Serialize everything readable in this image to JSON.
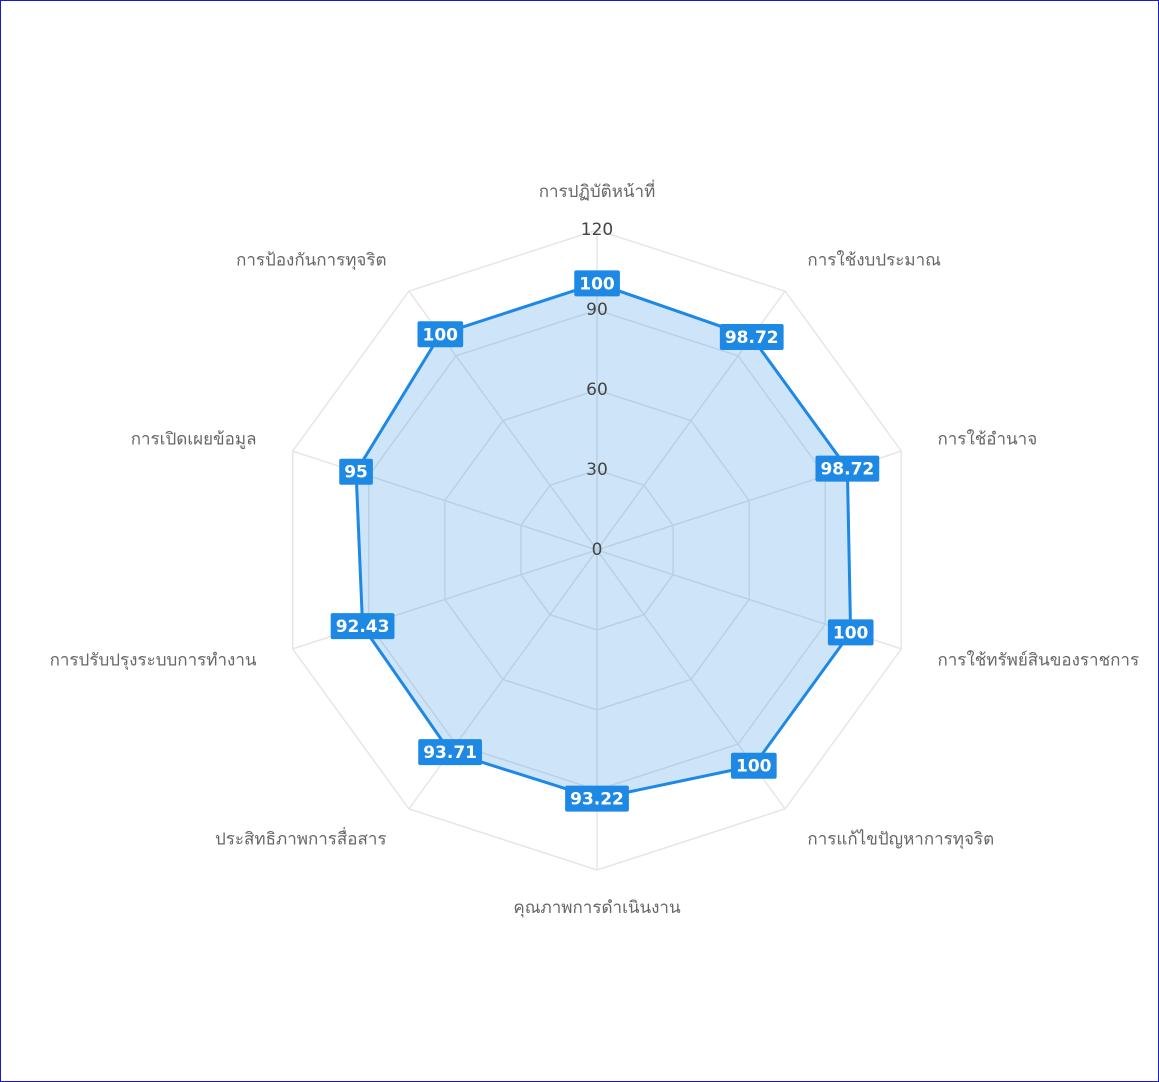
{
  "chart_data": {
    "type": "radar",
    "categories": [
      "การปฏิบัติหน้าที่",
      "การใช้งบประมาณ",
      "การใช้อำนาจ",
      "การใช้ทรัพย์สินของราชการ",
      "การแก้ไขปัญหาการทุจริต",
      "คุณภาพการดำเนินงาน",
      "ประสิทธิภาพการสื่อสาร",
      "การปรับปรุงระบบการทำงาน",
      "การเปิดเผยข้อมูล",
      "การป้องกันการทุจริต"
    ],
    "values": [
      100,
      98.72,
      98.72,
      100,
      100,
      93.22,
      93.71,
      92.43,
      95,
      100
    ],
    "color": "#1e88e5",
    "rlim": [
      0,
      120
    ],
    "rticks": [
      0,
      30,
      60,
      90,
      120
    ],
    "grid": true
  }
}
